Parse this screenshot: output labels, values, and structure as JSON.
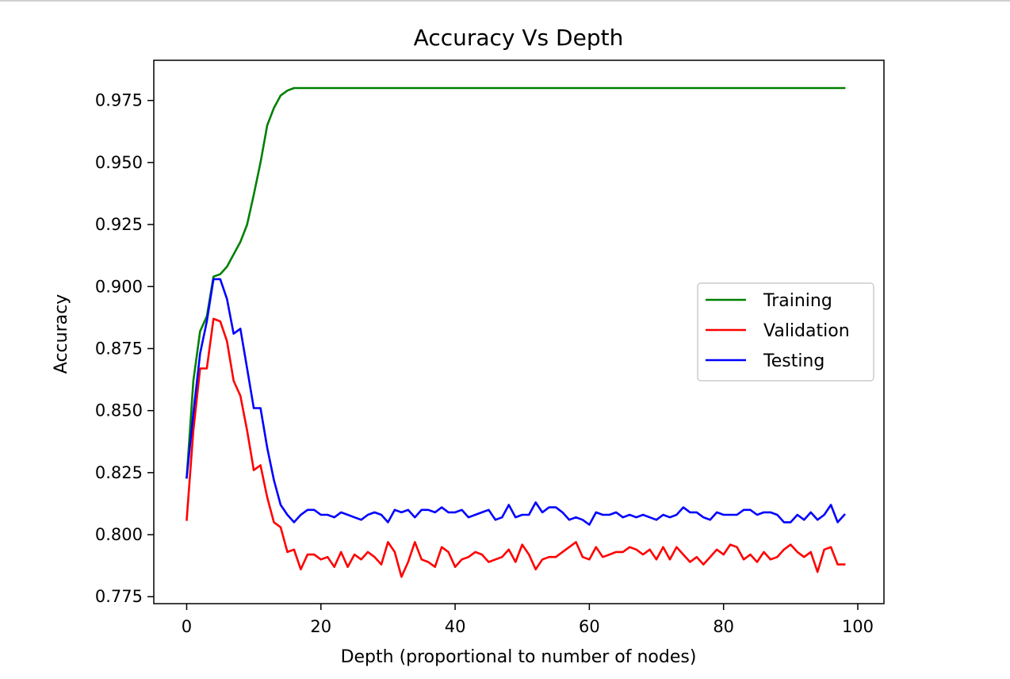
{
  "chart_data": {
    "type": "line",
    "title": "Accuracy Vs Depth",
    "xlabel": "Depth (proportional to number of nodes)",
    "ylabel": "Accuracy",
    "xlim": [
      -4.9,
      103.9
    ],
    "ylim": [
      0.7722,
      0.9912
    ],
    "xticks": [
      0,
      20,
      40,
      60,
      80,
      100
    ],
    "yticks": [
      0.775,
      0.8,
      0.825,
      0.85,
      0.875,
      0.9,
      0.925,
      0.95,
      0.975
    ],
    "xtick_labels": [
      "0",
      "20",
      "40",
      "60",
      "80",
      "100"
    ],
    "ytick_labels": [
      "0.775",
      "0.800",
      "0.825",
      "0.850",
      "0.875",
      "0.900",
      "0.925",
      "0.950",
      "0.975"
    ],
    "grid": false,
    "legend_position": "center-right",
    "series": [
      {
        "name": "Training",
        "color": "#008000",
        "x": [
          0,
          1,
          2,
          3,
          4,
          5,
          6,
          7,
          8,
          9,
          10,
          11,
          12,
          13,
          14,
          15,
          16,
          17,
          18,
          98
        ],
        "y": [
          0.823,
          0.862,
          0.882,
          0.888,
          0.904,
          0.905,
          0.908,
          0.913,
          0.918,
          0.925,
          0.937,
          0.95,
          0.965,
          0.972,
          0.977,
          0.979,
          0.98,
          0.98,
          0.98,
          0.98
        ]
      },
      {
        "name": "Validation",
        "color": "#ff0000",
        "x": [
          0,
          1,
          2,
          3,
          4,
          5,
          6,
          7,
          8,
          9,
          10,
          11,
          12,
          13,
          14,
          15,
          16,
          17,
          18,
          19,
          20,
          21,
          22,
          23,
          24,
          25,
          26,
          27,
          28,
          29,
          30,
          31,
          32,
          33,
          34,
          35,
          36,
          37,
          38,
          39,
          40,
          41,
          42,
          43,
          44,
          45,
          46,
          47,
          48,
          49,
          50,
          51,
          52,
          53,
          54,
          55,
          56,
          57,
          58,
          59,
          60,
          61,
          62,
          63,
          64,
          65,
          66,
          67,
          68,
          69,
          70,
          71,
          72,
          73,
          74,
          75,
          76,
          77,
          78,
          79,
          80,
          81,
          82,
          83,
          84,
          85,
          86,
          87,
          88,
          89,
          90,
          91,
          92,
          93,
          94,
          95,
          96,
          97,
          98
        ],
        "y": [
          0.806,
          0.842,
          0.867,
          0.867,
          0.887,
          0.886,
          0.878,
          0.862,
          0.856,
          0.842,
          0.826,
          0.828,
          0.815,
          0.805,
          0.803,
          0.793,
          0.794,
          0.786,
          0.792,
          0.792,
          0.79,
          0.791,
          0.787,
          0.793,
          0.787,
          0.792,
          0.79,
          0.793,
          0.791,
          0.788,
          0.797,
          0.793,
          0.783,
          0.789,
          0.797,
          0.79,
          0.789,
          0.787,
          0.795,
          0.793,
          0.787,
          0.79,
          0.791,
          0.793,
          0.792,
          0.789,
          0.79,
          0.791,
          0.794,
          0.789,
          0.796,
          0.792,
          0.786,
          0.79,
          0.791,
          0.791,
          0.793,
          0.795,
          0.797,
          0.791,
          0.79,
          0.795,
          0.791,
          0.792,
          0.793,
          0.793,
          0.795,
          0.794,
          0.792,
          0.794,
          0.79,
          0.795,
          0.79,
          0.795,
          0.792,
          0.789,
          0.791,
          0.788,
          0.791,
          0.794,
          0.792,
          0.796,
          0.795,
          0.79,
          0.792,
          0.789,
          0.793,
          0.79,
          0.791,
          0.794,
          0.796,
          0.793,
          0.791,
          0.793,
          0.785,
          0.794,
          0.795,
          0.788,
          0.788
        ]
      },
      {
        "name": "Testing",
        "color": "#0000ff",
        "x": [
          0,
          1,
          2,
          3,
          4,
          5,
          6,
          7,
          8,
          9,
          10,
          11,
          12,
          13,
          14,
          15,
          16,
          17,
          18,
          19,
          20,
          21,
          22,
          23,
          24,
          25,
          26,
          27,
          28,
          29,
          30,
          31,
          32,
          33,
          34,
          35,
          36,
          37,
          38,
          39,
          40,
          41,
          42,
          43,
          44,
          45,
          46,
          47,
          48,
          49,
          50,
          51,
          52,
          53,
          54,
          55,
          56,
          57,
          58,
          59,
          60,
          61,
          62,
          63,
          64,
          65,
          66,
          67,
          68,
          69,
          70,
          71,
          72,
          73,
          74,
          75,
          76,
          77,
          78,
          79,
          80,
          81,
          82,
          83,
          84,
          85,
          86,
          87,
          88,
          89,
          90,
          91,
          92,
          93,
          94,
          95,
          96,
          97,
          98
        ],
        "y": [
          0.823,
          0.849,
          0.873,
          0.886,
          0.903,
          0.903,
          0.895,
          0.881,
          0.883,
          0.867,
          0.851,
          0.851,
          0.835,
          0.822,
          0.812,
          0.808,
          0.805,
          0.808,
          0.81,
          0.81,
          0.808,
          0.808,
          0.807,
          0.809,
          0.808,
          0.807,
          0.806,
          0.808,
          0.809,
          0.808,
          0.805,
          0.81,
          0.809,
          0.81,
          0.807,
          0.81,
          0.81,
          0.809,
          0.811,
          0.809,
          0.809,
          0.81,
          0.807,
          0.808,
          0.809,
          0.81,
          0.806,
          0.807,
          0.812,
          0.807,
          0.808,
          0.808,
          0.813,
          0.809,
          0.811,
          0.811,
          0.809,
          0.806,
          0.807,
          0.806,
          0.804,
          0.809,
          0.808,
          0.808,
          0.809,
          0.807,
          0.808,
          0.807,
          0.808,
          0.807,
          0.806,
          0.808,
          0.807,
          0.808,
          0.811,
          0.809,
          0.809,
          0.807,
          0.806,
          0.809,
          0.808,
          0.808,
          0.808,
          0.81,
          0.81,
          0.808,
          0.809,
          0.809,
          0.808,
          0.805,
          0.805,
          0.808,
          0.806,
          0.809,
          0.806,
          0.808,
          0.812,
          0.805,
          0.808
        ]
      }
    ]
  }
}
